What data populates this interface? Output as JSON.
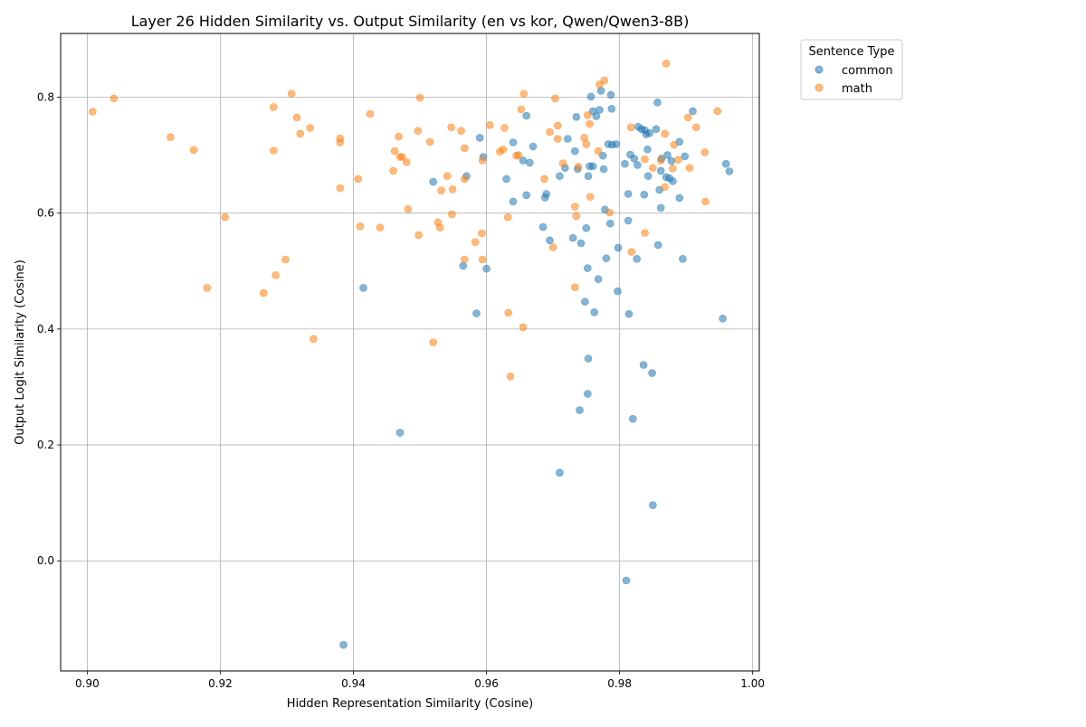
{
  "chart_data": {
    "type": "scatter",
    "title": "Layer 26 Hidden Similarity vs. Output Similarity (en vs kor, Qwen/Qwen3-8B)",
    "xlabel": "Hidden Representation Similarity (Cosine)",
    "ylabel": "Output Logit Similarity (Cosine)",
    "xlim": [
      0.896,
      1.001
    ],
    "ylim": [
      -0.19,
      0.91
    ],
    "xticks": [
      0.9,
      0.92,
      0.94,
      0.96,
      0.98,
      1.0
    ],
    "xtick_labels": [
      "0.90",
      "0.92",
      "0.94",
      "0.96",
      "0.98",
      "1.00"
    ],
    "yticks": [
      0.0,
      0.2,
      0.4,
      0.6,
      0.8
    ],
    "ytick_labels": [
      "0.0",
      "0.2",
      "0.4",
      "0.6",
      "0.8"
    ],
    "grid": true,
    "legend": {
      "title": "Sentence Type",
      "placement": "outside-top-right"
    },
    "series": [
      {
        "name": "common",
        "color": "#1f77b4",
        "points": [
          [
            0.9385,
            -0.145
          ],
          [
            0.9415,
            0.471
          ],
          [
            0.947,
            0.221
          ],
          [
            0.952,
            0.654
          ],
          [
            0.9565,
            0.509
          ],
          [
            0.957,
            0.664
          ],
          [
            0.9585,
            0.427
          ],
          [
            0.959,
            0.73
          ],
          [
            0.9595,
            0.697
          ],
          [
            0.96,
            0.504
          ],
          [
            0.963,
            0.659
          ],
          [
            0.964,
            0.722
          ],
          [
            0.964,
            0.62
          ],
          [
            0.9655,
            0.691
          ],
          [
            0.966,
            0.768
          ],
          [
            0.966,
            0.631
          ],
          [
            0.9665,
            0.687
          ],
          [
            0.967,
            0.715
          ],
          [
            0.9685,
            0.576
          ],
          [
            0.9688,
            0.627
          ],
          [
            0.969,
            0.633
          ],
          [
            0.9695,
            0.553
          ],
          [
            0.971,
            0.152
          ],
          [
            0.971,
            0.664
          ],
          [
            0.9718,
            0.678
          ],
          [
            0.9722,
            0.728
          ],
          [
            0.973,
            0.557
          ],
          [
            0.9733,
            0.707
          ],
          [
            0.9735,
            0.766
          ],
          [
            0.9737,
            0.676
          ],
          [
            0.974,
            0.26
          ],
          [
            0.9742,
            0.548
          ],
          [
            0.9748,
            0.447
          ],
          [
            0.975,
            0.574
          ],
          [
            0.9752,
            0.505
          ],
          [
            0.9752,
            0.288
          ],
          [
            0.9753,
            0.349
          ],
          [
            0.9753,
            0.664
          ],
          [
            0.9755,
            0.681
          ],
          [
            0.9757,
            0.801
          ],
          [
            0.976,
            0.776
          ],
          [
            0.976,
            0.681
          ],
          [
            0.9762,
            0.429
          ],
          [
            0.9765,
            0.767
          ],
          [
            0.9768,
            0.486
          ],
          [
            0.977,
            0.778
          ],
          [
            0.9772,
            0.811
          ],
          [
            0.9775,
            0.699
          ],
          [
            0.9776,
            0.676
          ],
          [
            0.9778,
            0.606
          ],
          [
            0.978,
            0.522
          ],
          [
            0.9783,
            0.719
          ],
          [
            0.9786,
            0.582
          ],
          [
            0.9787,
            0.804
          ],
          [
            0.9788,
            0.78
          ],
          [
            0.9789,
            0.718
          ],
          [
            0.9795,
            0.719
          ],
          [
            0.9797,
            0.465
          ],
          [
            0.9798,
            0.54
          ],
          [
            0.9808,
            0.685
          ],
          [
            0.981,
            -0.034
          ],
          [
            0.9813,
            0.633
          ],
          [
            0.9813,
            0.587
          ],
          [
            0.9814,
            0.426
          ],
          [
            0.9816,
            0.701
          ],
          [
            0.982,
            0.245
          ],
          [
            0.9822,
            0.694
          ],
          [
            0.9826,
            0.521
          ],
          [
            0.9827,
            0.683
          ],
          [
            0.9828,
            0.749
          ],
          [
            0.9833,
            0.745
          ],
          [
            0.9836,
            0.338
          ],
          [
            0.9837,
            0.632
          ],
          [
            0.9838,
            0.743
          ],
          [
            0.984,
            0.736
          ],
          [
            0.9842,
            0.71
          ],
          [
            0.9843,
            0.664
          ],
          [
            0.9845,
            0.738
          ],
          [
            0.9849,
            0.324
          ],
          [
            0.985,
            0.096
          ],
          [
            0.9855,
            0.745
          ],
          [
            0.9857,
            0.791
          ],
          [
            0.9858,
            0.545
          ],
          [
            0.986,
            0.64
          ],
          [
            0.9862,
            0.673
          ],
          [
            0.9862,
            0.609
          ],
          [
            0.9863,
            0.694
          ],
          [
            0.987,
            0.662
          ],
          [
            0.9872,
            0.7
          ],
          [
            0.9875,
            0.66
          ],
          [
            0.9878,
            0.69
          ],
          [
            0.988,
            0.655
          ],
          [
            0.989,
            0.723
          ],
          [
            0.989,
            0.626
          ],
          [
            0.9895,
            0.521
          ],
          [
            0.9898,
            0.698
          ],
          [
            0.991,
            0.776
          ],
          [
            0.9955,
            0.418
          ],
          [
            0.996,
            0.685
          ],
          [
            0.9965,
            0.672
          ]
        ]
      },
      {
        "name": "math",
        "color": "#ff7f0e",
        "points": [
          [
            0.9008,
            0.775
          ],
          [
            0.904,
            0.798
          ],
          [
            0.9125,
            0.731
          ],
          [
            0.916,
            0.709
          ],
          [
            0.918,
            0.471
          ],
          [
            0.9207,
            0.593
          ],
          [
            0.9265,
            0.462
          ],
          [
            0.928,
            0.783
          ],
          [
            0.928,
            0.708
          ],
          [
            0.9283,
            0.493
          ],
          [
            0.9298,
            0.52
          ],
          [
            0.9307,
            0.806
          ],
          [
            0.9315,
            0.765
          ],
          [
            0.932,
            0.737
          ],
          [
            0.9335,
            0.747
          ],
          [
            0.934,
            0.383
          ],
          [
            0.938,
            0.729
          ],
          [
            0.938,
            0.722
          ],
          [
            0.938,
            0.643
          ],
          [
            0.9407,
            0.659
          ],
          [
            0.941,
            0.577
          ],
          [
            0.9425,
            0.771
          ],
          [
            0.944,
            0.575
          ],
          [
            0.946,
            0.673
          ],
          [
            0.9462,
            0.707
          ],
          [
            0.9468,
            0.732
          ],
          [
            0.947,
            0.697
          ],
          [
            0.9473,
            0.697
          ],
          [
            0.948,
            0.688
          ],
          [
            0.9482,
            0.607
          ],
          [
            0.9497,
            0.742
          ],
          [
            0.9498,
            0.562
          ],
          [
            0.95,
            0.799
          ],
          [
            0.9515,
            0.723
          ],
          [
            0.952,
            0.377
          ],
          [
            0.9527,
            0.584
          ],
          [
            0.953,
            0.575
          ],
          [
            0.9532,
            0.639
          ],
          [
            0.9541,
            0.664
          ],
          [
            0.9547,
            0.748
          ],
          [
            0.9548,
            0.598
          ],
          [
            0.9549,
            0.641
          ],
          [
            0.9562,
            0.742
          ],
          [
            0.9567,
            0.712
          ],
          [
            0.9567,
            0.659
          ],
          [
            0.9567,
            0.52
          ],
          [
            0.9583,
            0.55
          ],
          [
            0.9593,
            0.565
          ],
          [
            0.9594,
            0.52
          ],
          [
            0.9594,
            0.691
          ],
          [
            0.9605,
            0.752
          ],
          [
            0.962,
            0.706
          ],
          [
            0.9625,
            0.71
          ],
          [
            0.9627,
            0.747
          ],
          [
            0.9632,
            0.593
          ],
          [
            0.9633,
            0.428
          ],
          [
            0.9636,
            0.318
          ],
          [
            0.9645,
            0.699
          ],
          [
            0.9648,
            0.7
          ],
          [
            0.9652,
            0.779
          ],
          [
            0.9655,
            0.403
          ],
          [
            0.9656,
            0.806
          ],
          [
            0.9687,
            0.659
          ],
          [
            0.9695,
            0.74
          ],
          [
            0.97,
            0.541
          ],
          [
            0.9703,
            0.798
          ],
          [
            0.9707,
            0.728
          ],
          [
            0.9707,
            0.751
          ],
          [
            0.9715,
            0.686
          ],
          [
            0.9733,
            0.472
          ],
          [
            0.9733,
            0.611
          ],
          [
            0.9735,
            0.595
          ],
          [
            0.9738,
            0.68
          ],
          [
            0.9747,
            0.73
          ],
          [
            0.975,
            0.719
          ],
          [
            0.9752,
            0.769
          ],
          [
            0.9755,
            0.754
          ],
          [
            0.9756,
            0.628
          ],
          [
            0.9768,
            0.707
          ],
          [
            0.977,
            0.822
          ],
          [
            0.9777,
            0.829
          ],
          [
            0.9785,
            0.601
          ],
          [
            0.9817,
            0.748
          ],
          [
            0.9818,
            0.533
          ],
          [
            0.9838,
            0.566
          ],
          [
            0.9838,
            0.693
          ],
          [
            0.985,
            0.678
          ],
          [
            0.9862,
            0.691
          ],
          [
            0.9868,
            0.737
          ],
          [
            0.9868,
            0.645
          ],
          [
            0.987,
            0.858
          ],
          [
            0.988,
            0.677
          ],
          [
            0.9882,
            0.718
          ],
          [
            0.9888,
            0.692
          ],
          [
            0.9903,
            0.765
          ],
          [
            0.9905,
            0.678
          ],
          [
            0.9915,
            0.748
          ],
          [
            0.9928,
            0.705
          ],
          [
            0.9929,
            0.62
          ],
          [
            0.9947,
            0.776
          ]
        ]
      }
    ]
  }
}
